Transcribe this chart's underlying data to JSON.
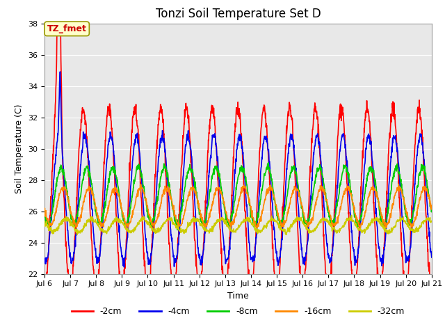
{
  "title": "Tonzi Soil Temperature Set D",
  "xlabel": "Time",
  "ylabel": "Soil Temperature (C)",
  "xlim_days": [
    6,
    21
  ],
  "ylim": [
    22,
    38
  ],
  "yticks": [
    22,
    24,
    26,
    28,
    30,
    32,
    34,
    36,
    38
  ],
  "xtick_labels": [
    "Jul 6",
    "Jul 7",
    "Jul 8",
    "Jul 9",
    "Jul 10",
    "Jul 11",
    "Jul 12",
    "Jul 13",
    "Jul 14",
    "Jul 15",
    "Jul 16",
    "Jul 17",
    "Jul 18",
    "Jul 19",
    "Jul 20",
    "Jul 21"
  ],
  "series_colors": [
    "#ff0000",
    "#0000ee",
    "#00cc00",
    "#ff8800",
    "#cccc00"
  ],
  "series_labels": [
    "-2cm",
    "-4cm",
    "-8cm",
    "-16cm",
    "-32cm"
  ],
  "annotation_text": "TZ_fmet",
  "annotation_bg": "#ffffcc",
  "annotation_border": "#cccc00",
  "background_color": "#e8e8e8",
  "grid_color": "#ffffff",
  "title_fontsize": 12,
  "label_fontsize": 9,
  "tick_fontsize": 8,
  "legend_fontsize": 9,
  "line_width": 1.2,
  "n_points": 1440,
  "period_hours": 24.0,
  "phase_2cm": 6.0,
  "phase_4cm": 7.5,
  "phase_8cm": 9.5,
  "phase_16cm": 11.5,
  "phase_32cm": 14.0,
  "amp_2cm": 5.8,
  "amp_4cm": 4.0,
  "amp_8cm": 1.8,
  "amp_16cm": 1.2,
  "amp_32cm": 0.4,
  "base_2cm": 26.8,
  "base_4cm": 26.8,
  "base_8cm": 27.0,
  "base_16cm": 26.3,
  "base_32cm": 25.1,
  "noise_2cm": 0.25,
  "noise_4cm": 0.15,
  "noise_8cm": 0.12,
  "noise_16cm": 0.1,
  "noise_32cm": 0.08
}
